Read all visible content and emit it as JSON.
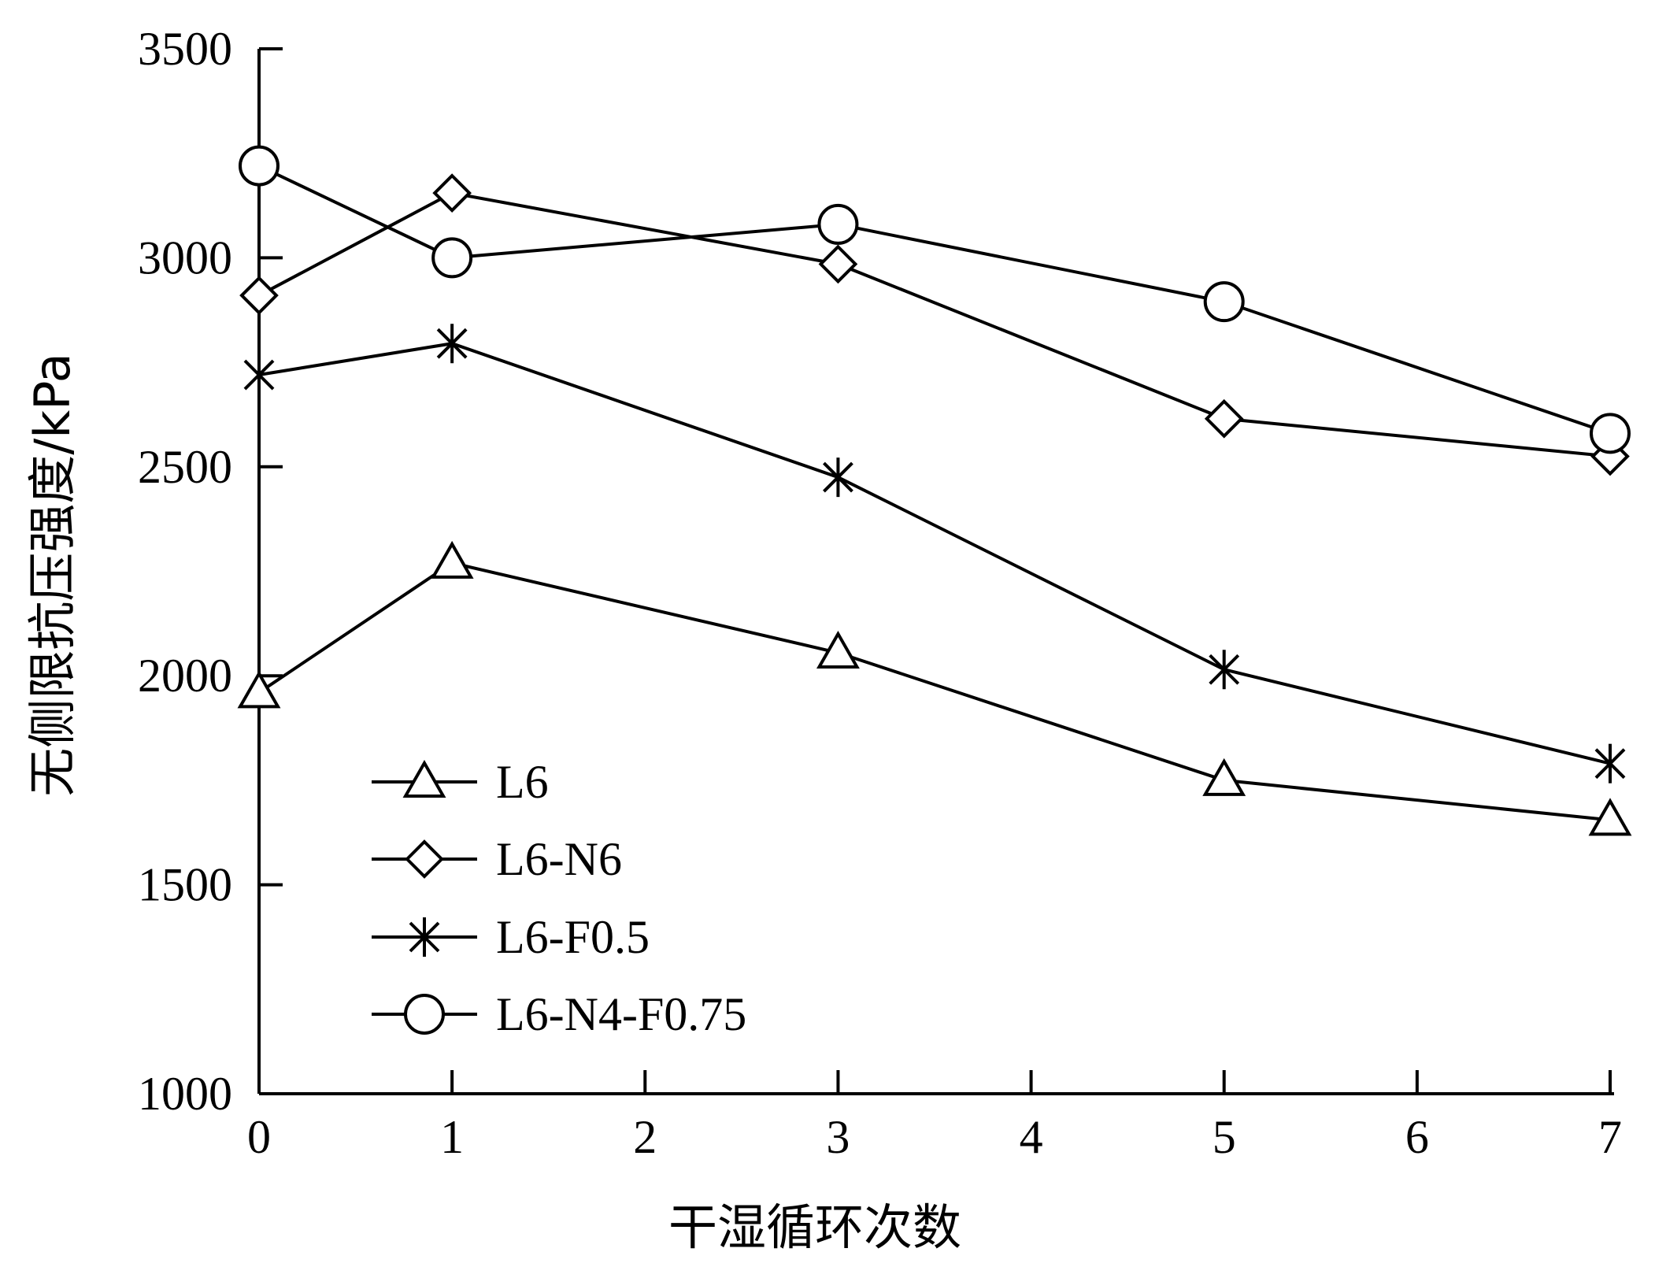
{
  "chart_data": {
    "type": "line",
    "title": "",
    "xlabel": "干湿循环次数",
    "ylabel": "无侧限抗压强度/kPa",
    "xlim": [
      0,
      7
    ],
    "ylim": [
      1000,
      3500
    ],
    "xticks": [
      0,
      1,
      2,
      3,
      4,
      5,
      6,
      7
    ],
    "yticks": [
      1000,
      1500,
      2000,
      2500,
      3000,
      3500
    ],
    "x": [
      0,
      1,
      3,
      5,
      7
    ],
    "grid": false,
    "legend_position": "bottom-left",
    "series": [
      {
        "name": "L6",
        "marker": "triangle",
        "values": [
          1960,
          2270,
          2055,
          1750,
          1655
        ]
      },
      {
        "name": "L6-N6",
        "marker": "diamond",
        "values": [
          2910,
          3155,
          2985,
          2615,
          2525
        ]
      },
      {
        "name": "L6-F0.5",
        "marker": "asterisk",
        "values": [
          2720,
          2795,
          2475,
          2015,
          1790
        ]
      },
      {
        "name": "L6-N4-F0.75",
        "marker": "circle",
        "values": [
          3220,
          3000,
          3080,
          2895,
          2580
        ]
      }
    ],
    "colors": {
      "line": "#000000",
      "marker_fill": "#ffffff"
    }
  }
}
